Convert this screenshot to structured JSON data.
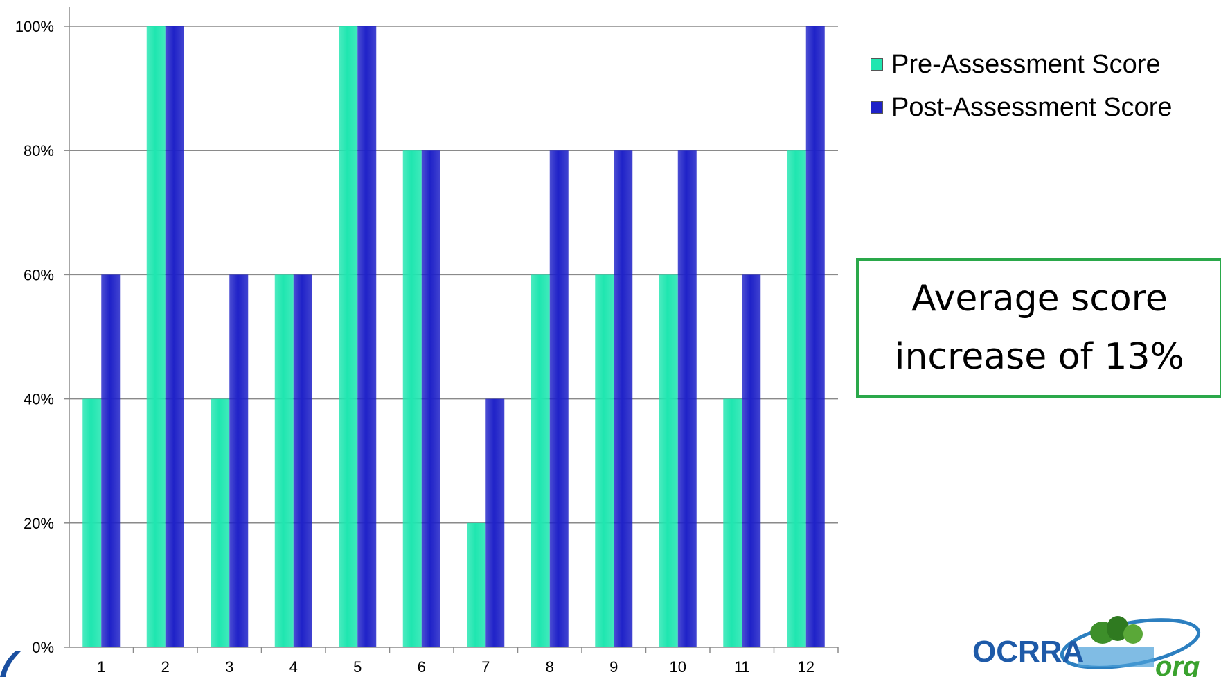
{
  "chart_data": {
    "type": "bar",
    "categories": [
      "1",
      "2",
      "3",
      "4",
      "5",
      "6",
      "7",
      "8",
      "9",
      "10",
      "11",
      "12"
    ],
    "series": [
      {
        "name": "Pre-Assessment Score",
        "color": "#1fe6b0",
        "values": [
          40,
          100,
          40,
          60,
          100,
          80,
          20,
          60,
          60,
          60,
          40,
          80
        ]
      },
      {
        "name": "Post-Assessment Score",
        "color": "#1f22c8",
        "values": [
          60,
          100,
          60,
          60,
          100,
          80,
          40,
          80,
          80,
          80,
          60,
          100
        ]
      }
    ],
    "y_ticks": [
      "0%",
      "20%",
      "40%",
      "60%",
      "80%",
      "100%"
    ],
    "ylim": [
      0,
      100
    ],
    "y_unit": "%",
    "grid": true,
    "legend_position": "top-right"
  },
  "callout": {
    "line1": "Average score",
    "line2": "increase of 13%",
    "border_color": "#2aa84a"
  },
  "logo": {
    "text": "OCRRA",
    "suffix": "org"
  }
}
